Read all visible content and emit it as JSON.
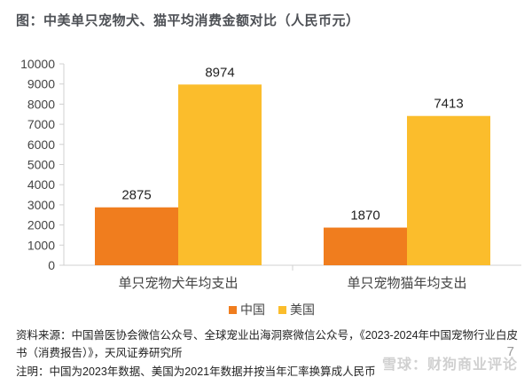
{
  "chart_data": {
    "type": "bar",
    "title": "图：中美单只宠物犬、猫平均消费金额对比（人民币元）",
    "categories": [
      "单只宠物犬年均支出",
      "单只宠物猫年均支出"
    ],
    "series": [
      {
        "name": "中国",
        "values": [
          2875,
          1870
        ],
        "color": "#f07d1e"
      },
      {
        "name": "美国",
        "values": [
          8974,
          7413
        ],
        "color": "#fbbd2c"
      }
    ],
    "ylim": [
      0,
      10000
    ],
    "yticks": [
      0,
      1000,
      2000,
      3000,
      4000,
      5000,
      6000,
      7000,
      8000,
      9000,
      10000
    ],
    "grid": false,
    "legend": "bottom"
  },
  "footer": {
    "source": "资料来源：中国兽医协会微信公众号、全球宠业出海洞察微信公众号，《2023-2024年中国宠物行业白皮书（消费报告）》，天风证券研究所",
    "note": "注明：中国为2023年数据、美国为2021年数据并按当年汇率换算成人民币",
    "watermark": "雪球：财狗商业评论",
    "page_number": "7"
  }
}
